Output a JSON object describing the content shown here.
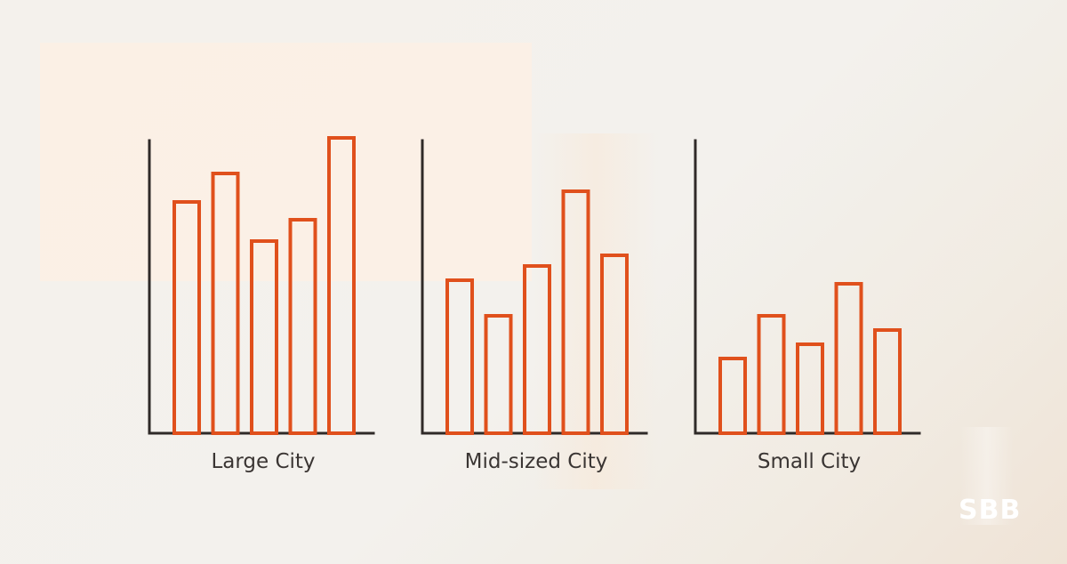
{
  "chart_data": [
    {
      "type": "bar",
      "title": "Large City",
      "categories": [
        "",
        "",
        "",
        "",
        ""
      ],
      "values": [
        6.5,
        7.3,
        5.4,
        6.0,
        8.3
      ],
      "ylim": [
        0,
        10
      ],
      "grid": false,
      "colors": {
        "bar": "#e0501c",
        "axis": "#2f2a28"
      }
    },
    {
      "type": "bar",
      "title": "Mid-sized City",
      "categories": [
        "",
        "",
        "",
        "",
        ""
      ],
      "values": [
        4.3,
        3.3,
        4.7,
        6.8,
        5.0
      ],
      "ylim": [
        0,
        10
      ],
      "grid": false,
      "colors": {
        "bar": "#e0501c",
        "axis": "#2f2a28"
      }
    },
    {
      "type": "bar",
      "title": "Small City",
      "categories": [
        "",
        "",
        "",
        "",
        ""
      ],
      "values": [
        2.1,
        3.3,
        2.5,
        4.2,
        2.9
      ],
      "ylim": [
        0,
        10
      ],
      "grid": false,
      "colors": {
        "bar": "#e0501c",
        "axis": "#2f2a28"
      }
    }
  ],
  "logo": {
    "text": "SBB"
  }
}
